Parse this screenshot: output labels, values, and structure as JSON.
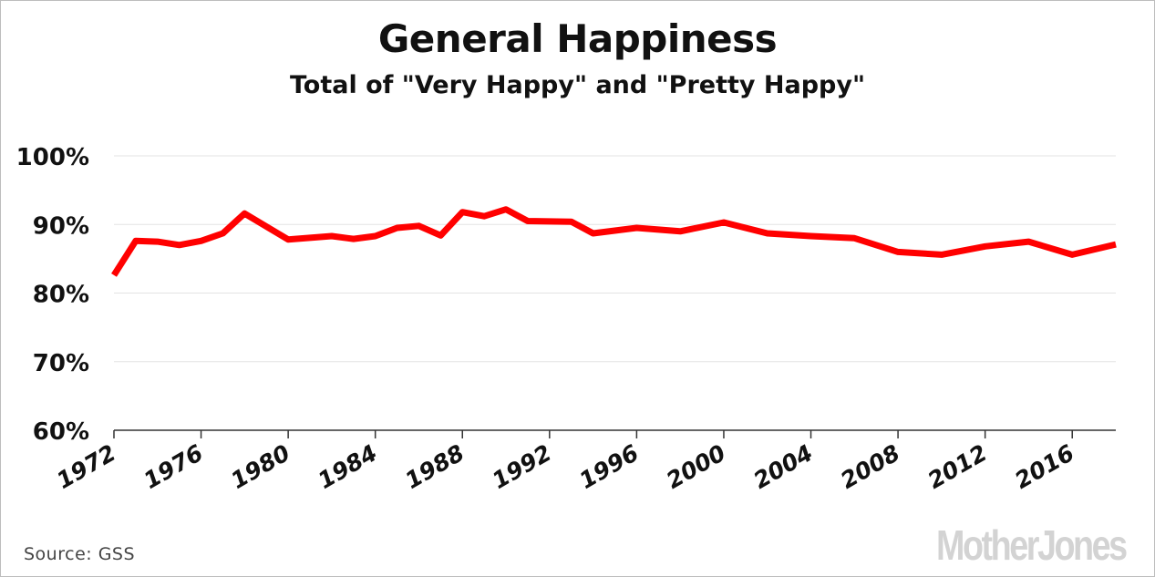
{
  "chart_data": {
    "type": "line",
    "title": "General Happiness",
    "subtitle": "Total of \"Very Happy\" and \"Pretty Happy\"",
    "ylim": [
      60,
      100
    ],
    "xlim": [
      1972,
      2018
    ],
    "y_ticks": [
      "60%",
      "70%",
      "80%",
      "90%",
      "100%"
    ],
    "y_tick_values": [
      60,
      70,
      80,
      90,
      100
    ],
    "x_ticks": [
      "1972",
      "1976",
      "1980",
      "1984",
      "1988",
      "1992",
      "1996",
      "2000",
      "2004",
      "2008",
      "2012",
      "2016"
    ],
    "x_tick_values": [
      1972,
      1976,
      1980,
      1984,
      1988,
      1992,
      1996,
      2000,
      2004,
      2008,
      2012,
      2016
    ],
    "grid": true,
    "line_color": "#ff0000",
    "series": [
      {
        "x": [
          1972,
          1973,
          1974,
          1975,
          1976,
          1977,
          1978,
          1980,
          1982,
          1983,
          1984,
          1985,
          1986,
          1987,
          1988,
          1989,
          1990,
          1991,
          1993,
          1994,
          1996,
          1998,
          2000,
          2002,
          2004,
          2006,
          2008,
          2010,
          2012,
          2014,
          2016,
          2018
        ],
        "values": [
          82.6,
          87.6,
          87.5,
          87.0,
          87.6,
          88.7,
          91.6,
          87.8,
          88.3,
          87.9,
          88.3,
          89.5,
          89.8,
          88.4,
          91.8,
          91.2,
          92.2,
          90.5,
          90.4,
          88.7,
          89.5,
          89.0,
          90.3,
          88.7,
          88.3,
          88.0,
          86.0,
          85.6,
          86.8,
          87.5,
          85.6,
          87.1
        ]
      }
    ]
  },
  "source": "Source: GSS",
  "logo": "MotherJones"
}
